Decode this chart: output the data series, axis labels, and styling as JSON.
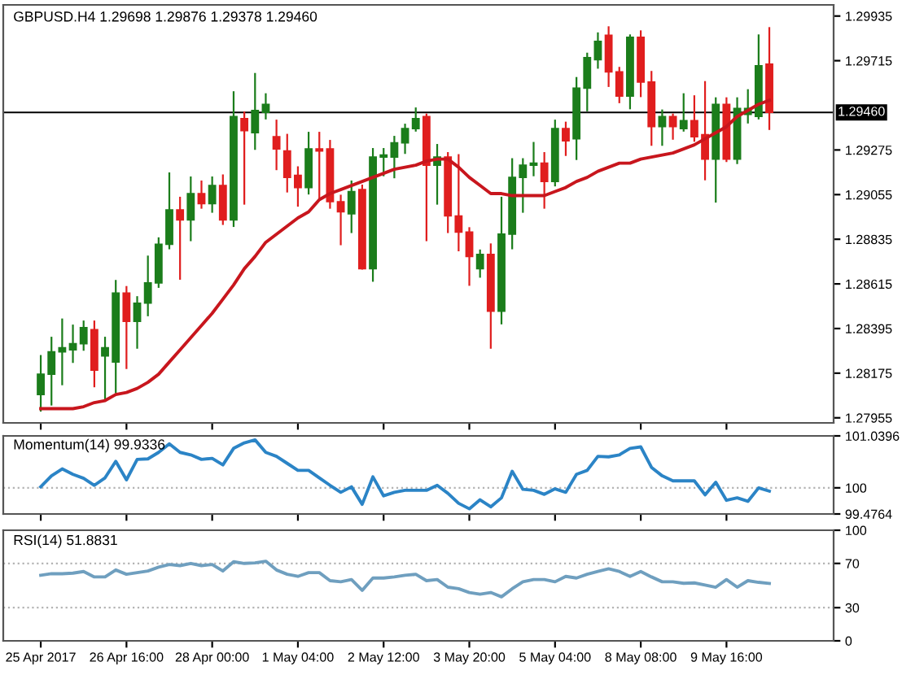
{
  "chart_data": [
    {
      "type": "candlestick",
      "title": "GBPUSD.H4 1.29698 1.29876 1.29378 1.29460",
      "categories": [
        null,
        null,
        null,
        null,
        null,
        null,
        null,
        null,
        null,
        null,
        null,
        null,
        null,
        null,
        null,
        null,
        null,
        null,
        null,
        null,
        null,
        null,
        null,
        null,
        null,
        null,
        null,
        null,
        null,
        null,
        null,
        null,
        null,
        null,
        null,
        null,
        null,
        null,
        null,
        null,
        null,
        null,
        null,
        null,
        null,
        null,
        null,
        null,
        null,
        null,
        null,
        null,
        null,
        null,
        null,
        null,
        null,
        null,
        null,
        null,
        null,
        null,
        null,
        null,
        null,
        null,
        null,
        null,
        null
      ],
      "ohlc": [
        [
          1.2807,
          1.2826,
          1.2799,
          1.2817
        ],
        [
          1.2817,
          1.2835,
          1.2802,
          1.2828
        ],
        [
          1.2828,
          1.2844,
          1.2812,
          1.283
        ],
        [
          1.2829,
          1.2841,
          1.2823,
          1.2832
        ],
        [
          1.2832,
          1.2843,
          1.2829,
          1.284
        ],
        [
          1.2839,
          1.2843,
          1.2811,
          1.2819
        ],
        [
          1.2826,
          1.2835,
          1.2804,
          1.283
        ],
        [
          1.2823,
          1.2863,
          1.2808,
          1.2857
        ],
        [
          1.2857,
          1.286,
          1.282,
          1.2843
        ],
        [
          1.2843,
          1.2855,
          1.283,
          1.2852
        ],
        [
          1.2852,
          1.2875,
          1.2846,
          1.2862
        ],
        [
          1.2862,
          1.2884,
          1.286,
          1.2881
        ],
        [
          1.2881,
          1.2916,
          1.2879,
          1.2898
        ],
        [
          1.2898,
          1.2904,
          1.2864,
          1.2893
        ],
        [
          1.2893,
          1.2914,
          1.2883,
          1.2906
        ],
        [
          1.2906,
          1.2912,
          1.2899,
          1.2901
        ],
        [
          1.2901,
          1.2914,
          1.2897,
          1.291
        ],
        [
          1.291,
          1.2915,
          1.2891,
          1.2893
        ],
        [
          1.2893,
          1.2956,
          1.289,
          1.2944
        ],
        [
          1.2943,
          1.2946,
          1.2901,
          1.2937
        ],
        [
          1.2936,
          1.2965,
          1.2928,
          1.2947
        ],
        [
          1.2946,
          1.2955,
          1.2943,
          1.295
        ],
        [
          1.2934,
          1.2942,
          1.2918,
          1.2928
        ],
        [
          1.2927,
          1.2935,
          1.2907,
          1.2914
        ],
        [
          1.2915,
          1.2919,
          1.29,
          1.2909
        ],
        [
          1.2909,
          1.2936,
          1.2906,
          1.2928
        ],
        [
          1.2928,
          1.2936,
          1.2904,
          1.2927
        ],
        [
          1.2928,
          1.2932,
          1.2899,
          1.2902
        ],
        [
          1.2902,
          1.2905,
          1.2881,
          1.2897
        ],
        [
          1.2896,
          1.2912,
          1.2887,
          1.2907
        ],
        [
          1.2908,
          1.291,
          1.2869,
          1.2869
        ],
        [
          1.2869,
          1.2928,
          1.2863,
          1.2924
        ],
        [
          1.2924,
          1.2928,
          1.2915,
          1.2925
        ],
        [
          1.2924,
          1.2934,
          1.2914,
          1.2931
        ],
        [
          1.2931,
          1.294,
          1.2926,
          1.2938
        ],
        [
          1.2938,
          1.2948,
          1.2937,
          1.2943
        ],
        [
          1.2944,
          1.2945,
          1.2883,
          1.292
        ],
        [
          1.292,
          1.293,
          1.2901,
          1.2924
        ],
        [
          1.2924,
          1.2926,
          1.2887,
          1.2895
        ],
        [
          1.2895,
          1.2925,
          1.2878,
          1.2887
        ],
        [
          1.2887,
          1.2889,
          1.2861,
          1.2875
        ],
        [
          1.2869,
          1.2878,
          1.2865,
          1.2876
        ],
        [
          1.2876,
          1.2881,
          1.283,
          1.2848
        ],
        [
          1.2848,
          1.2904,
          1.2842,
          1.2886
        ],
        [
          1.2886,
          1.2923,
          1.2879,
          1.2914
        ],
        [
          1.2914,
          1.2923,
          1.2897,
          1.292
        ],
        [
          1.292,
          1.2931,
          1.2915,
          1.2921
        ],
        [
          1.2921,
          1.2926,
          1.2899,
          1.2912
        ],
        [
          1.2912,
          1.2942,
          1.291,
          1.2938
        ],
        [
          1.2938,
          1.2941,
          1.2925,
          1.2932
        ],
        [
          1.2933,
          1.2963,
          1.2923,
          1.2958
        ],
        [
          1.2958,
          1.2975,
          1.2947,
          1.2973
        ],
        [
          1.2972,
          1.2985,
          1.2968,
          1.2981
        ],
        [
          1.2984,
          1.2988,
          1.2959,
          1.2966
        ],
        [
          1.2966,
          1.2968,
          1.2951,
          1.2954
        ],
        [
          1.2954,
          1.2984,
          1.2948,
          1.2983
        ],
        [
          1.2983,
          1.2986,
          1.2954,
          1.2961
        ],
        [
          1.2961,
          1.2966,
          1.293,
          1.2939
        ],
        [
          1.2939,
          1.2947,
          1.293,
          1.2944
        ],
        [
          1.2944,
          1.2945,
          1.2933,
          1.2939
        ],
        [
          1.2938,
          1.2955,
          1.2937,
          1.2942
        ],
        [
          1.2942,
          1.2954,
          1.2932,
          1.2934
        ],
        [
          1.2935,
          1.2961,
          1.2913,
          1.2923
        ],
        [
          1.2923,
          1.2953,
          1.2902,
          1.295
        ],
        [
          1.295,
          1.2953,
          1.2922,
          1.2923
        ],
        [
          1.2923,
          1.2953,
          1.2921,
          1.2948
        ],
        [
          1.2945,
          1.2957,
          1.2941,
          1.2948
        ],
        [
          1.2944,
          1.2984,
          1.2943,
          1.2969
        ],
        [
          1.29698,
          1.29876,
          1.29378,
          1.2946
        ]
      ],
      "colors": [
        "#1b7d1b",
        "#1b7d1b",
        "#1b7d1b",
        "#1b7d1b",
        "#1b7d1b",
        "#e01e1e",
        "#1b7d1b",
        "#1b7d1b",
        "#e01e1e",
        "#1b7d1b",
        "#1b7d1b",
        "#1b7d1b",
        "#1b7d1b",
        "#e01e1e",
        "#1b7d1b",
        "#e01e1e",
        "#1b7d1b",
        "#e01e1e",
        "#1b7d1b",
        "#e01e1e",
        "#1b7d1b",
        "#1b7d1b",
        "#e01e1e",
        "#e01e1e",
        "#e01e1e",
        "#1b7d1b",
        "#e01e1e",
        "#e01e1e",
        "#e01e1e",
        "#1b7d1b",
        "#e01e1e",
        "#1b7d1b",
        "#1b7d1b",
        "#1b7d1b",
        "#1b7d1b",
        "#1b7d1b",
        "#e01e1e",
        "#1b7d1b",
        "#e01e1e",
        "#e01e1e",
        "#e01e1e",
        "#1b7d1b",
        "#e01e1e",
        "#1b7d1b",
        "#1b7d1b",
        "#1b7d1b",
        "#1b7d1b",
        "#e01e1e",
        "#1b7d1b",
        "#e01e1e",
        "#1b7d1b",
        "#1b7d1b",
        "#1b7d1b",
        "#e01e1e",
        "#e01e1e",
        "#1b7d1b",
        "#e01e1e",
        "#e01e1e",
        "#1b7d1b",
        "#e01e1e",
        "#1b7d1b",
        "#e01e1e",
        "#e01e1e",
        "#1b7d1b",
        "#e01e1e",
        "#1b7d1b",
        "#1b7d1b",
        "#1b7d1b",
        "#e01e1e"
      ],
      "series": [
        {
          "type": "line",
          "color": "#c8161d",
          "values": [
            1.28,
            1.28,
            1.28,
            1.28,
            1.2801,
            1.2803,
            1.2804,
            1.2807,
            1.2808,
            1.281,
            1.2813,
            1.2817,
            1.2823,
            1.2829,
            1.2835,
            1.2841,
            1.2847,
            1.2854,
            1.2861,
            1.2869,
            1.2875,
            1.2882,
            1.2886,
            1.289,
            1.2894,
            1.2897,
            1.2903,
            1.2906,
            1.2908,
            1.291,
            1.2912,
            1.2914,
            1.2916,
            1.2918,
            1.2919,
            1.292,
            1.2922,
            1.2923,
            1.2923,
            1.2919,
            1.2914,
            1.291,
            1.2906,
            1.2906,
            1.2905,
            1.2905,
            1.2905,
            1.2905,
            1.2907,
            1.2909,
            1.2912,
            1.2914,
            1.2917,
            1.2919,
            1.2921,
            1.2921,
            1.2923,
            1.2924,
            1.2925,
            1.2926,
            1.2928,
            1.293,
            1.2933,
            1.2936,
            1.2939,
            1.2944,
            1.2947,
            1.295,
            1.2952
          ]
        }
      ],
      "ylim": [
        1.2793,
        1.2999
      ],
      "yticks": [
        1.27955,
        1.28175,
        1.28395,
        1.28615,
        1.28835,
        1.29055,
        1.29275,
        1.29715,
        1.29935
      ],
      "ref_lines": [
        {
          "axis": "y",
          "value": 1.2946,
          "label": "1.29460",
          "color": "#000000"
        }
      ],
      "tick_labels": "y"
    },
    {
      "type": "line",
      "title": "Momentum(14) 99.9336",
      "categories": [
        null,
        null,
        null,
        null,
        null,
        null,
        null,
        null,
        null,
        null,
        null,
        null,
        null,
        null,
        null,
        null,
        null,
        null,
        null,
        null,
        null,
        null,
        null,
        null,
        null,
        null,
        null,
        null,
        null,
        null,
        null,
        null,
        null,
        null,
        null,
        null,
        null,
        null,
        null,
        null,
        null,
        null,
        null,
        null,
        null,
        null,
        null,
        null,
        null,
        null,
        null,
        null,
        null,
        null,
        null,
        null,
        null,
        null,
        null,
        null,
        null,
        null,
        null,
        null,
        null,
        null,
        null,
        null,
        null
      ],
      "series": [
        {
          "color": "#2b84c6",
          "values": [
            100.02,
            100.24,
            100.38,
            100.27,
            100.19,
            100.05,
            100.2,
            100.53,
            100.16,
            100.57,
            100.58,
            100.71,
            100.88,
            100.71,
            100.66,
            100.57,
            100.59,
            100.46,
            100.79,
            100.9,
            100.96,
            100.71,
            100.63,
            100.49,
            100.35,
            100.35,
            100.2,
            100.05,
            99.91,
            100.02,
            99.67,
            100.22,
            99.84,
            99.91,
            99.95,
            99.95,
            99.95,
            100.05,
            99.89,
            99.69,
            99.58,
            99.76,
            99.62,
            99.8,
            100.33,
            99.97,
            99.95,
            99.87,
            99.98,
            99.91,
            100.27,
            100.35,
            100.63,
            100.62,
            100.66,
            100.79,
            100.82,
            100.41,
            100.24,
            100.14,
            100.14,
            100.14,
            99.86,
            100.11,
            99.75,
            99.8,
            99.73,
            100.0,
            99.9336
          ]
        }
      ],
      "ylim": [
        99.4764,
        101.0396
      ],
      "yticks": [
        99.4764,
        100,
        101.0396
      ],
      "ref_lines": [
        {
          "axis": "y",
          "value": 100,
          "color": "#b4b4b4",
          "line_style": "dotted"
        }
      ],
      "tick_labels": "y"
    },
    {
      "type": "line",
      "title": "RSI(14) 51.8831",
      "categories": [
        "25 Apr 2017",
        null,
        null,
        null,
        null,
        null,
        null,
        null,
        "26 Apr 16:00",
        null,
        null,
        null,
        null,
        null,
        null,
        null,
        "28 Apr 00:00",
        null,
        null,
        null,
        null,
        null,
        null,
        null,
        "1 May 04:00",
        null,
        null,
        null,
        null,
        null,
        null,
        null,
        "2 May 12:00",
        null,
        null,
        null,
        null,
        null,
        null,
        null,
        "3 May 20:00",
        null,
        null,
        null,
        null,
        null,
        null,
        null,
        "5 May 04:00",
        null,
        null,
        null,
        null,
        null,
        null,
        null,
        "8 May 08:00",
        null,
        null,
        null,
        null,
        null,
        null,
        null,
        "9 May 16:00",
        null,
        null,
        null,
        null
      ],
      "series": [
        {
          "color": "#6f9fbf",
          "values": [
            59.3,
            60.7,
            60.7,
            61.2,
            62.7,
            57.8,
            57.8,
            64.1,
            60.2,
            61.7,
            63.2,
            66.6,
            69.0,
            68.0,
            70.0,
            68.0,
            69.0,
            63.2,
            71.5,
            70.0,
            70.5,
            72.0,
            64.1,
            60.2,
            58.3,
            61.7,
            61.7,
            54.4,
            53.4,
            55.4,
            45.6,
            56.8,
            56.8,
            57.8,
            59.3,
            60.2,
            54.4,
            55.4,
            48.5,
            47.1,
            43.7,
            42.2,
            43.7,
            39.8,
            47.1,
            53.4,
            55.4,
            55.4,
            53.4,
            58.3,
            56.8,
            60.2,
            62.7,
            65.1,
            62.7,
            58.3,
            62.7,
            57.8,
            53.4,
            53.4,
            52.0,
            52.4,
            50.5,
            48.5,
            55.4,
            48.5,
            54.4,
            52.9,
            51.8831
          ]
        }
      ],
      "ylim": [
        0,
        100
      ],
      "yticks": [
        0,
        30,
        70,
        100
      ],
      "ref_lines": [
        {
          "axis": "y",
          "value": 30,
          "color": "#b4b4b4",
          "line_style": "dotted"
        },
        {
          "axis": "y",
          "value": 70,
          "color": "#b4b4b4",
          "line_style": "dotted"
        }
      ]
    }
  ]
}
